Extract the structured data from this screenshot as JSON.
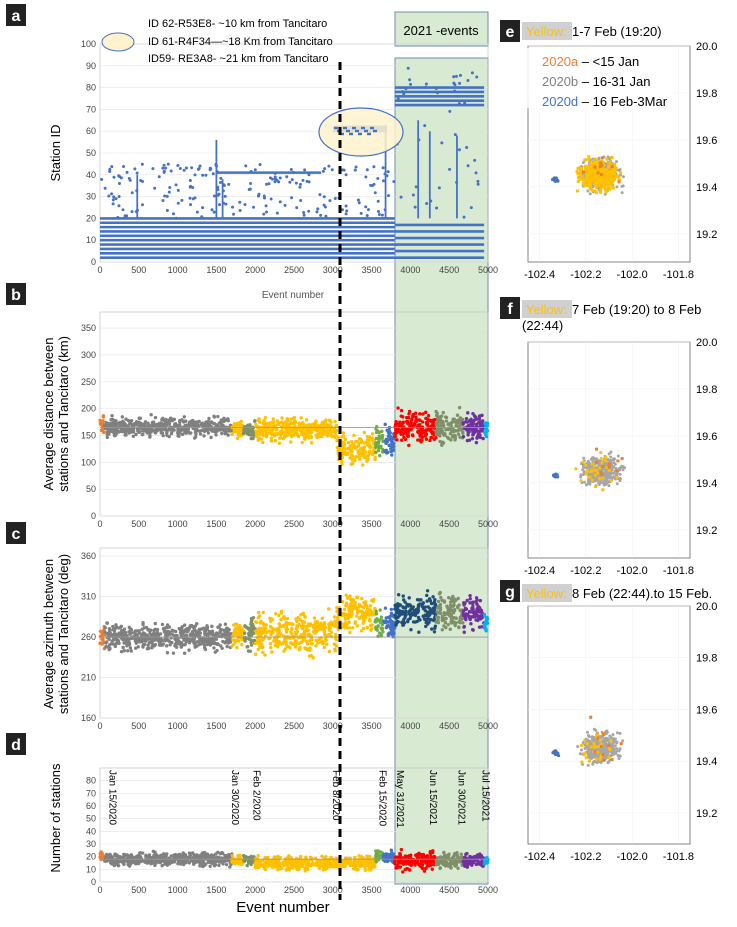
{
  "panel_letters": {
    "a": "a",
    "b": "b",
    "c": "c",
    "d": "d",
    "e": "e",
    "f": "f",
    "g": "g"
  },
  "colors": {
    "blue": "#4472c4",
    "orange": "#ed7d31",
    "gray": "#808080",
    "yellow": "#ffc000",
    "green_band": "#d9ead3",
    "red": "#ff0000",
    "dark_teal": "#1f4e79",
    "sage": "#7f8f6a",
    "purple": "#7030a0",
    "cyan": "#00b0f0",
    "green": "#70ad47",
    "ellipse_fill": "#fff2cc"
  },
  "left": {
    "xaxis_label": "Event number",
    "x_ticks": [
      "0",
      "500",
      "1000",
      "1500",
      "2000",
      "2500",
      "3000",
      "3500",
      "4000",
      "4500",
      "5000"
    ],
    "events_label": "2021 -events",
    "legend_a": [
      "ID 62-R53E8- ~10 km from Tancitaro",
      "ID 61-R4F34—~18 Km from Tancitaro",
      "ID59- RE3A8- ~21 km from Tancitaro"
    ]
  },
  "chart_data": [
    {
      "panel": "a",
      "type": "scatter",
      "title": "",
      "xlabel": "Event number",
      "ylabel": "Station ID",
      "xlim": [
        0,
        5000
      ],
      "ylim": [
        0,
        100
      ],
      "y_ticks": [
        "0",
        "10",
        "20",
        "30",
        "40",
        "50",
        "60",
        "70",
        "80",
        "90",
        "100"
      ],
      "series": [
        {
          "color": "blue",
          "bands": [
            {
              "x0": 0,
              "x1": 3800,
              "y": [
                2,
                4,
                6,
                8,
                10,
                12,
                14,
                16,
                18,
                20
              ]
            },
            {
              "x0": 3800,
              "x1": 4950,
              "y": [
                2,
                5,
                8,
                11,
                14,
                17
              ]
            },
            {
              "x0": 3800,
              "x1": 4950,
              "y": [
                72,
                74,
                76,
                78,
                80
              ]
            },
            {
              "x0": 1500,
              "x1": 2850,
              "y": [
                41
              ]
            },
            {
              "x0": 3000,
              "x1": 3700,
              "y": [
                60,
                61,
                62
              ]
            }
          ]
        }
      ]
    },
    {
      "panel": "b",
      "type": "scatter",
      "title": "",
      "xlabel": "",
      "ylabel": "Average distance between stations and Tancitaro (km)",
      "xlim": [
        0,
        5000
      ],
      "ylim": [
        0,
        380
      ],
      "y_ticks": [
        "0",
        "50",
        "100",
        "150",
        "200",
        "250",
        "300",
        "350"
      ],
      "segments": [
        {
          "color": "orange",
          "x0": 0,
          "x1": 60,
          "mean": 165,
          "spread": 25
        },
        {
          "color": "gray",
          "x0": 60,
          "x1": 1700,
          "mean": 165,
          "spread": 25
        },
        {
          "color": "yellow",
          "x0": 1700,
          "x1": 1850,
          "mean": 160,
          "spread": 25
        },
        {
          "color": "sage",
          "x0": 1850,
          "x1": 2000,
          "mean": 160,
          "spread": 25
        },
        {
          "color": "yellow",
          "x0": 2000,
          "x1": 3050,
          "mean": 160,
          "spread": 30
        },
        {
          "color": "yellow",
          "x0": 3050,
          "x1": 3550,
          "mean": 125,
          "spread": 40
        },
        {
          "color": "green",
          "x0": 3550,
          "x1": 3650,
          "mean": 140,
          "spread": 40
        },
        {
          "color": "blue",
          "x0": 3650,
          "x1": 3800,
          "mean": 140,
          "spread": 40
        },
        {
          "color": "red",
          "x0": 3800,
          "x1": 4330,
          "mean": 165,
          "spread": 40
        },
        {
          "color": "sage",
          "x0": 4330,
          "x1": 4680,
          "mean": 165,
          "spread": 40
        },
        {
          "color": "purple",
          "x0": 4680,
          "x1": 4950,
          "mean": 165,
          "spread": 35
        },
        {
          "color": "cyan",
          "x0": 4950,
          "x1": 5000,
          "mean": 165,
          "spread": 20
        }
      ]
    },
    {
      "panel": "c",
      "type": "scatter",
      "title": "",
      "xlabel": "",
      "ylabel": "Average azimuth between stations and Tancitaro (deg)",
      "xlim": [
        0,
        5000
      ],
      "ylim": [
        160,
        370
      ],
      "y_ticks": [
        "160",
        "210",
        "260",
        "310",
        "360"
      ],
      "segments": [
        {
          "color": "orange",
          "x0": 0,
          "x1": 60,
          "mean": 258,
          "spread": 20
        },
        {
          "color": "gray",
          "x0": 60,
          "x1": 1700,
          "mean": 260,
          "spread": 22
        },
        {
          "color": "yellow",
          "x0": 1700,
          "x1": 1850,
          "mean": 262,
          "spread": 25
        },
        {
          "color": "sage",
          "x0": 1850,
          "x1": 2000,
          "mean": 262,
          "spread": 25
        },
        {
          "color": "yellow",
          "x0": 2000,
          "x1": 3050,
          "mean": 265,
          "spread": 35
        },
        {
          "color": "yellow",
          "x0": 3050,
          "x1": 3550,
          "mean": 290,
          "spread": 30
        },
        {
          "color": "green",
          "x0": 3550,
          "x1": 3650,
          "mean": 275,
          "spread": 25
        },
        {
          "color": "blue",
          "x0": 3650,
          "x1": 3800,
          "mean": 275,
          "spread": 25
        },
        {
          "color": "dark_teal",
          "x0": 3800,
          "x1": 4330,
          "mean": 290,
          "spread": 30
        },
        {
          "color": "sage",
          "x0": 4330,
          "x1": 4680,
          "mean": 290,
          "spread": 30
        },
        {
          "color": "purple",
          "x0": 4680,
          "x1": 4950,
          "mean": 290,
          "spread": 30
        },
        {
          "color": "cyan",
          "x0": 4950,
          "x1": 5000,
          "mean": 280,
          "spread": 15
        }
      ]
    },
    {
      "panel": "d",
      "type": "scatter",
      "title": "",
      "xlabel": "Event number",
      "ylabel": "Number of stations",
      "xlim": [
        0,
        5000
      ],
      "ylim": [
        0,
        90
      ],
      "y_ticks": [
        "0",
        "10",
        "20",
        "30",
        "40",
        "50",
        "60",
        "70",
        "80"
      ],
      "segments": [
        {
          "color": "orange",
          "x0": 0,
          "x1": 60,
          "mean": 20,
          "spread": 5
        },
        {
          "color": "gray",
          "x0": 60,
          "x1": 1700,
          "mean": 18,
          "spread": 7
        },
        {
          "color": "yellow",
          "x0": 1700,
          "x1": 1850,
          "mean": 17,
          "spread": 5
        },
        {
          "color": "sage",
          "x0": 1850,
          "x1": 2000,
          "mean": 17,
          "spread": 5
        },
        {
          "color": "yellow",
          "x0": 2000,
          "x1": 3550,
          "mean": 15,
          "spread": 7
        },
        {
          "color": "green",
          "x0": 3550,
          "x1": 3650,
          "mean": 20,
          "spread": 7
        },
        {
          "color": "blue",
          "x0": 3650,
          "x1": 3800,
          "mean": 20,
          "spread": 7
        },
        {
          "color": "red",
          "x0": 3800,
          "x1": 4330,
          "mean": 17,
          "spread": 10
        },
        {
          "color": "sage",
          "x0": 4330,
          "x1": 4680,
          "mean": 17,
          "spread": 8
        },
        {
          "color": "purple",
          "x0": 4680,
          "x1": 4950,
          "mean": 17,
          "spread": 8
        },
        {
          "color": "cyan",
          "x0": 4950,
          "x1": 5000,
          "mean": 17,
          "spread": 5
        }
      ],
      "date_annotations": [
        {
          "x": 120,
          "text": "Jan 15/2020"
        },
        {
          "x": 1700,
          "text": "Jan 30/2020"
        },
        {
          "x": 1980,
          "text": "Feb 2/2020"
        },
        {
          "x": 3000,
          "text": "Feb 8/2020"
        },
        {
          "x": 3600,
          "text": "Feb 15/2020"
        },
        {
          "x": 3830,
          "text": "May 31/2021"
        },
        {
          "x": 4250,
          "text": "Jun 15/2021"
        },
        {
          "x": 4620,
          "text": "Jun 30/2021"
        },
        {
          "x": 4930,
          "text": "Jul 15/2021"
        }
      ]
    },
    {
      "panel": "e",
      "type": "scatter",
      "xlim": [
        -102.45,
        -101.75
      ],
      "ylim": [
        19.08,
        20.0
      ],
      "x_ticks": [
        "-102.4",
        "-102.2",
        "-102.0",
        "-101.8"
      ],
      "y_ticks": [
        "19.2",
        "19.4",
        "19.6",
        "19.8",
        "20.0"
      ],
      "header": {
        "highlight": "Yellow:",
        "rest": " 1-7 Feb (19:20)"
      },
      "legend": [
        {
          "label": "2020a",
          "text": " – <15 Jan",
          "color": "orange"
        },
        {
          "label": "2020b",
          "text": " – 16-31 Jan",
          "color": "gray"
        },
        {
          "label": "2020d",
          "text": " – 16 Feb-3Mar",
          "color": "blue"
        }
      ]
    },
    {
      "panel": "f",
      "type": "scatter",
      "xlim": [
        -102.45,
        -101.75
      ],
      "ylim": [
        19.08,
        20.0
      ],
      "x_ticks": [
        "-102.4",
        "-102.2",
        "-102.0",
        "-101.8"
      ],
      "y_ticks": [
        "19.2",
        "19.4",
        "19.6",
        "19.8",
        "20.0"
      ],
      "header": {
        "highlight": "Yellow:",
        "rest": " 7 Feb (19:20) to 8 Feb",
        "line2": "(22:44)"
      }
    },
    {
      "panel": "g",
      "type": "scatter",
      "xlim": [
        -102.45,
        -101.75
      ],
      "ylim": [
        19.08,
        20.0
      ],
      "x_ticks": [
        "-102.4",
        "-102.2",
        "-102.0",
        "-101.8"
      ],
      "y_ticks": [
        "19.2",
        "19.4",
        "19.6",
        "19.8",
        "20.0"
      ],
      "header": {
        "highlight": "Yellow:",
        "rest": " 8 Feb (22:44).to 15  Feb."
      }
    }
  ]
}
